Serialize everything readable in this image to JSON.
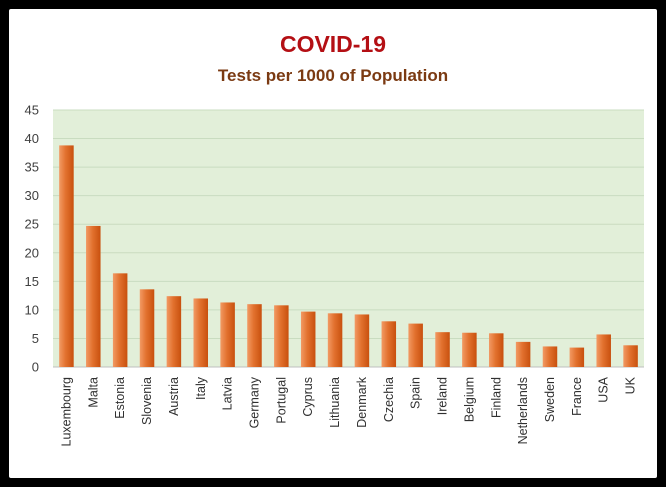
{
  "chart_data": {
    "type": "bar",
    "title": "COVID-19",
    "subtitle": "Tests per 1000 of Population",
    "xlabel": "",
    "ylabel": "",
    "ylim": [
      0,
      45
    ],
    "yticks": [
      "0",
      "5",
      "10",
      "15",
      "20",
      "25",
      "30",
      "35",
      "40",
      "45"
    ],
    "grid": true,
    "legend": "none",
    "colors": {
      "plot_background": "#e2efd9",
      "bar_light": "#f29a64",
      "bar_dark": "#c8500e",
      "gridline": "#c9dcc0",
      "title": "#b40f14",
      "subtitle": "#7b3a12"
    },
    "categories": [
      "Luxembourg",
      "Malta",
      "Estonia",
      "Slovenia",
      "Austria",
      "Italy",
      "Latvia",
      "Germany",
      "Portugal",
      "Cyprus",
      "Lithuania",
      "Denmark",
      "Czechia",
      "Spain",
      "Ireland",
      "Belgium",
      "Finland",
      "Netherlands",
      "Sweden",
      "France",
      "USA",
      "UK"
    ],
    "values": [
      38.8,
      24.7,
      16.4,
      13.6,
      12.4,
      12.0,
      11.3,
      11.0,
      10.8,
      9.7,
      9.4,
      9.2,
      8.0,
      7.6,
      6.1,
      6.0,
      5.9,
      4.4,
      3.6,
      3.4,
      5.7,
      3.8
    ]
  }
}
